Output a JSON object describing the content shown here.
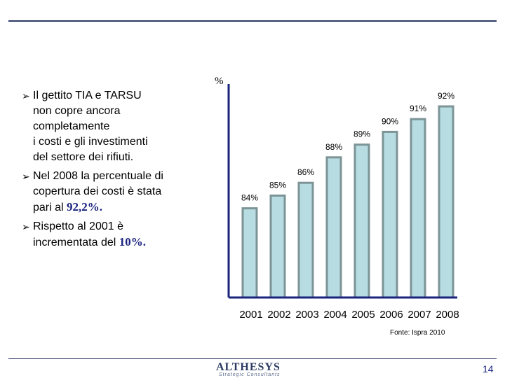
{
  "bullets": [
    {
      "lines": [
        "Il gettito TIA e TARSU",
        "non copre ancora",
        "completamente",
        "i costi e gli investimenti",
        "del settore dei rifiuti."
      ]
    },
    {
      "lines": [
        "Nel 2008 la percentuale di",
        "copertura dei costi è stata"
      ],
      "last_prefix": "pari al ",
      "last_highlight": "92,2%",
      "last_suffix": "."
    },
    {
      "lines": [
        "Rispetto al 2001 è"
      ],
      "last_prefix": "incrementata del ",
      "last_highlight": "10%",
      "last_suffix": "."
    }
  ],
  "chart_data": {
    "type": "bar",
    "ylabel": "%",
    "categories": [
      "2001",
      "2002",
      "2003",
      "2004",
      "2005",
      "2006",
      "2007",
      "2008"
    ],
    "values": [
      84,
      85,
      86,
      88,
      89,
      90,
      91,
      92
    ],
    "data_labels": [
      "84%",
      "85%",
      "86%",
      "88%",
      "89%",
      "90%",
      "91%",
      "92%"
    ],
    "ylim": [
      77,
      92
    ],
    "grid": false,
    "colors": {
      "bar_fill": "#b7dde2",
      "bar_stroke": "#7d9496",
      "axis": "#1a237e"
    }
  },
  "source": "Fonte: Ispra 2010",
  "logo": {
    "name": "ALTHESYS",
    "tagline": "Strategic Consultants"
  },
  "page_number": "14"
}
